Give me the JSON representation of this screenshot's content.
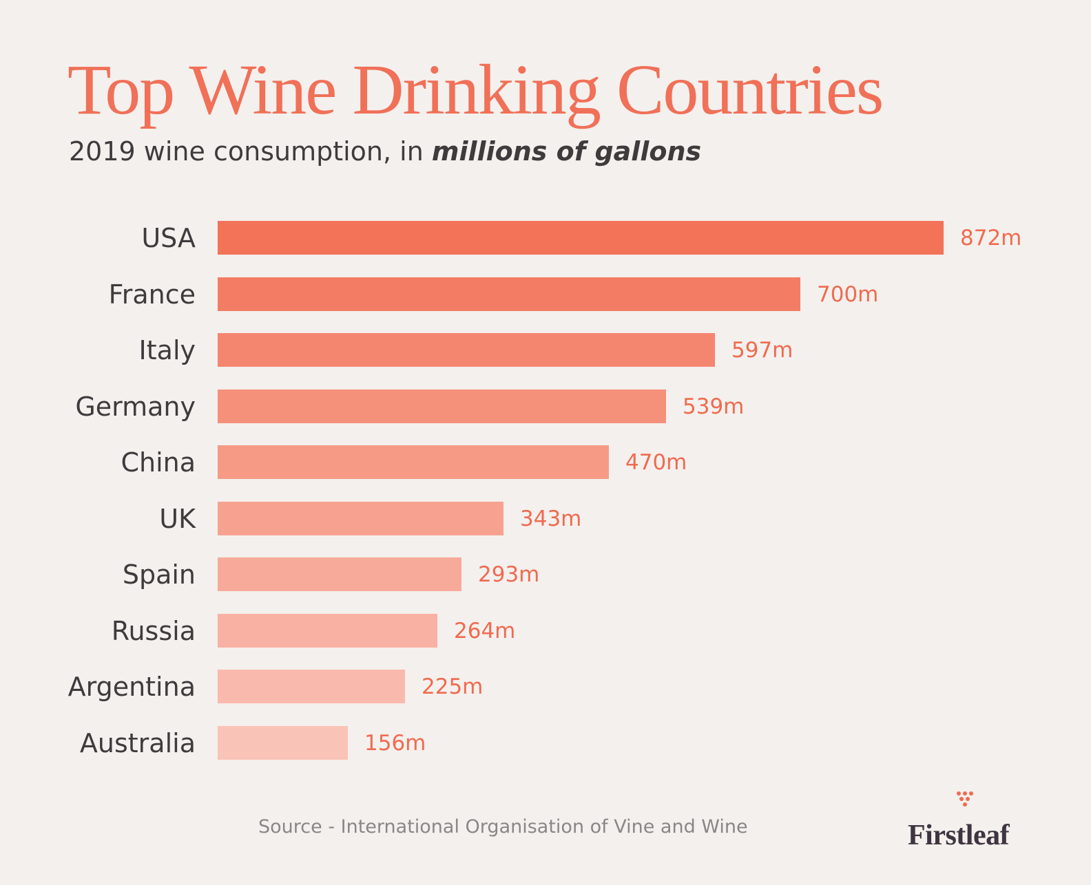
{
  "header": {
    "title": "Top Wine Drinking Countries",
    "subtitle_plain": "2019 wine consumption, in ",
    "subtitle_emphasis": "millions of gallons"
  },
  "footer": {
    "source": "Source - International Organisation of Vine and Wine",
    "brand": "Firstleaf",
    "brand_icon": "grape-cluster-icon"
  },
  "colors": {
    "background": "#f4f0ed",
    "accent": "#f07058",
    "text": "#3e3b3d"
  },
  "chart_data": {
    "type": "bar",
    "orientation": "horizontal",
    "title": "Top Wine Drinking Countries",
    "subtitle": "2019 wine consumption, in millions of gallons",
    "xlabel": "",
    "ylabel": "",
    "unit": "millions of gallons",
    "grid": false,
    "legend": "none",
    "categories": [
      "USA",
      "France",
      "Italy",
      "Germany",
      "China",
      "UK",
      "Spain",
      "Russia",
      "Argentina",
      "Australia"
    ],
    "values": [
      872,
      700,
      597,
      539,
      470,
      343,
      293,
      264,
      225,
      156
    ],
    "value_labels": [
      "872m",
      "700m",
      "597m",
      "539m",
      "470m",
      "343m",
      "293m",
      "264m",
      "225m",
      "156m"
    ],
    "bar_colors": [
      "#f27358",
      "#f37d64",
      "#f48670",
      "#f5907b",
      "#f69a86",
      "#f7a291",
      "#f8aa9a",
      "#f9b1a3",
      "#f9b9ac",
      "#fac3b7"
    ],
    "annotations": [
      "Source - International Organisation of Vine and Wine"
    ]
  }
}
